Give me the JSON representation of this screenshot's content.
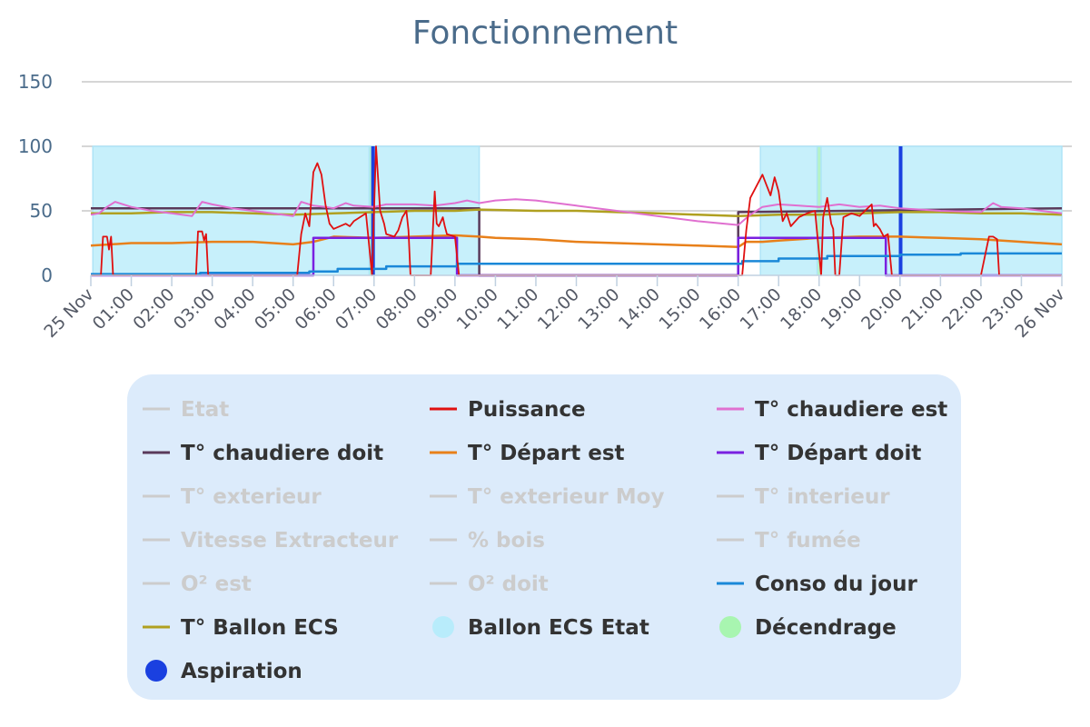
{
  "chart_data": {
    "type": "line",
    "title": "Fonctionnement",
    "xlabel": "",
    "ylabel": "",
    "ylim": [
      0,
      150
    ],
    "yticks": [
      0,
      50,
      100,
      150
    ],
    "xlim": [
      0,
      24
    ],
    "xticks": [
      "25 Nov",
      "01:00",
      "02:00",
      "03:00",
      "04:00",
      "05:00",
      "06:00",
      "07:00",
      "08:00",
      "09:00",
      "10:00",
      "11:00",
      "12:00",
      "13:00",
      "14:00",
      "15:00",
      "16:00",
      "17:00",
      "18:00",
      "19:00",
      "20:00",
      "21:00",
      "22:00",
      "23:00",
      "26 Nov"
    ],
    "grid": true,
    "legend_placement": "bottom",
    "legend": [
      {
        "name": "Etat",
        "kind": "line",
        "color": "#cccccc",
        "visible": false
      },
      {
        "name": "Puissance",
        "kind": "line",
        "color": "#e01010",
        "visible": true
      },
      {
        "name": "T° chaudiere est",
        "kind": "line",
        "color": "#e070d0",
        "visible": true
      },
      {
        "name": "T° chaudiere doit",
        "kind": "line",
        "color": "#5a3a5a",
        "visible": true
      },
      {
        "name": "T° Départ est",
        "kind": "line",
        "color": "#e8801a",
        "visible": true
      },
      {
        "name": "T° Départ doit",
        "kind": "line",
        "color": "#7a20e0",
        "visible": true
      },
      {
        "name": "T° exterieur",
        "kind": "line",
        "color": "#cccccc",
        "visible": false
      },
      {
        "name": "T° exterieur Moy",
        "kind": "line",
        "color": "#cccccc",
        "visible": false
      },
      {
        "name": "T° interieur",
        "kind": "line",
        "color": "#cccccc",
        "visible": false
      },
      {
        "name": "Vitesse Extracteur",
        "kind": "line",
        "color": "#cccccc",
        "visible": false
      },
      {
        "name": "% bois",
        "kind": "line",
        "color": "#cccccc",
        "visible": false
      },
      {
        "name": "T° fumée",
        "kind": "line",
        "color": "#cccccc",
        "visible": false
      },
      {
        "name": "O² est",
        "kind": "line",
        "color": "#cccccc",
        "visible": false
      },
      {
        "name": "O² doit",
        "kind": "line",
        "color": "#cccccc",
        "visible": false
      },
      {
        "name": "Conso du jour",
        "kind": "line",
        "color": "#1a88d8",
        "visible": true
      },
      {
        "name": "T° Ballon ECS",
        "kind": "line",
        "color": "#b0a020",
        "visible": true
      },
      {
        "name": "Ballon ECS Etat",
        "kind": "circle",
        "color": "#b8ecfb",
        "visible": true
      },
      {
        "name": "Décendrage",
        "kind": "circle",
        "color": "#a8f5b0",
        "visible": true
      },
      {
        "name": "Aspiration",
        "kind": "circle",
        "color": "#1a40e0",
        "visible": true
      }
    ],
    "areas": [
      {
        "name": "Ballon ECS Etat",
        "color": "#c4effb",
        "value": 100,
        "ranges": [
          [
            0.05,
            9.6
          ],
          [
            16.55,
            24
          ]
        ]
      },
      {
        "name": "Décendrage",
        "color": "#b4f2c4",
        "value": 100,
        "ranges": [
          [
            6.88,
            6.98
          ],
          [
            17.95,
            18.05
          ]
        ]
      },
      {
        "name": "Aspiration",
        "color": "#1a40e0",
        "value": 100,
        "ranges": [
          [
            6.93,
            7.02
          ],
          [
            19.97,
            20.03
          ]
        ]
      }
    ],
    "series": [
      {
        "name": "T° chaudiere doit",
        "color": "#5a3a5a",
        "width": 2.5,
        "x": [
          0,
          9.6,
          9.6,
          16.0,
          16.0,
          24
        ],
        "y": [
          52,
          52,
          0,
          0,
          49,
          52
        ]
      },
      {
        "name": "T° Ballon ECS",
        "color": "#b0a020",
        "width": 2.5,
        "x": [
          0,
          1,
          2,
          3,
          4,
          5,
          6,
          7,
          8,
          9,
          9.6,
          11,
          12,
          13,
          14,
          15,
          16,
          17,
          18,
          19,
          20,
          21,
          22,
          23,
          24
        ],
        "y": [
          48,
          48,
          49,
          49,
          48,
          47,
          48,
          49,
          50,
          50,
          51,
          50,
          50,
          49,
          48,
          47,
          46,
          47,
          47,
          48,
          49,
          49,
          48,
          48,
          47
        ]
      },
      {
        "name": "T° chaudiere est",
        "color": "#e070d0",
        "width": 2,
        "x": [
          0,
          0.2,
          0.4,
          0.6,
          1,
          1.5,
          2,
          2.5,
          2.75,
          3,
          3.5,
          4,
          4.5,
          5,
          5.2,
          5.5,
          5.8,
          6,
          6.3,
          6.5,
          7,
          7.3,
          8,
          8.5,
          9,
          9.3,
          9.6,
          10,
          10.5,
          11,
          12,
          13,
          14,
          15,
          16,
          16.3,
          16.6,
          17,
          17.5,
          18,
          18.5,
          19,
          19.5,
          20,
          20.5,
          21,
          22,
          22.3,
          22.5,
          23,
          23.5,
          24
        ],
        "y": [
          47,
          48,
          53,
          57,
          53,
          50,
          48,
          46,
          57,
          55,
          52,
          50,
          48,
          46,
          57,
          54,
          53,
          52,
          56,
          54,
          53,
          55,
          55,
          54,
          56,
          58,
          56,
          58,
          59,
          58,
          54,
          50,
          46,
          42,
          39,
          47,
          53,
          55,
          54,
          53,
          55,
          53,
          54,
          52,
          51,
          50,
          49,
          56,
          53,
          52,
          50,
          48
        ]
      },
      {
        "name": "T° Départ est",
        "color": "#e8801a",
        "width": 2.5,
        "x": [
          0,
          0.5,
          1,
          2,
          3,
          4,
          5,
          5.5,
          6,
          7,
          8,
          9,
          9.6,
          10,
          11,
          12,
          13,
          14,
          15,
          16,
          16.2,
          16.6,
          17,
          18,
          19,
          20,
          21,
          22,
          23,
          24
        ],
        "y": [
          23,
          24,
          25,
          25,
          26,
          26,
          24,
          26,
          30,
          29,
          30,
          31,
          30,
          29,
          28,
          26,
          25,
          24,
          23,
          22,
          26,
          26,
          27,
          29,
          30,
          30,
          29,
          28,
          26,
          24
        ]
      },
      {
        "name": "T° Départ doit",
        "color": "#7a20e0",
        "width": 2.5,
        "x": [
          0,
          5.5,
          5.5,
          9.05,
          9.05,
          16.0,
          16.0,
          19.65,
          19.65,
          24
        ],
        "y": [
          0,
          0,
          29,
          29,
          0,
          0,
          29,
          29,
          0,
          0
        ]
      },
      {
        "name": "Conso du jour",
        "color": "#1a88d8",
        "width": 2.5,
        "x": [
          0,
          2.7,
          2.7,
          5.4,
          5.4,
          6.1,
          6.1,
          7.3,
          7.3,
          9.05,
          9.05,
          16.1,
          16.1,
          17.0,
          17.0,
          18.2,
          18.2,
          20.0,
          20.0,
          21.5,
          21.5,
          24
        ],
        "y": [
          1,
          1,
          2,
          2,
          3,
          3,
          5,
          5,
          7,
          7,
          9,
          9,
          11,
          11,
          13,
          13,
          15,
          15,
          16,
          16,
          17,
          17
        ]
      },
      {
        "name": "Puissance",
        "color": "#e01010",
        "width": 1.8,
        "x": [
          0,
          0.25,
          0.3,
          0.4,
          0.45,
          0.5,
          0.55,
          0.6,
          2.0,
          2.6,
          2.65,
          2.75,
          2.8,
          2.85,
          2.9,
          5.1,
          5.2,
          5.3,
          5.4,
          5.5,
          5.6,
          5.7,
          5.8,
          5.9,
          6.0,
          6.3,
          6.4,
          6.5,
          6.8,
          6.95,
          7.05,
          7.15,
          7.25,
          7.3,
          7.5,
          7.6,
          7.7,
          7.8,
          7.85,
          7.9,
          8.0,
          8.4,
          8.5,
          8.55,
          8.6,
          8.7,
          8.75,
          8.8,
          9.0,
          9.1,
          9.15,
          9.2,
          10,
          12,
          15,
          16.1,
          16.2,
          16.3,
          16.5,
          16.6,
          16.7,
          16.8,
          16.9,
          17.0,
          17.1,
          17.2,
          17.3,
          17.5,
          17.7,
          17.9,
          18.05,
          18.1,
          18.2,
          18.3,
          18.35,
          18.4,
          18.5,
          18.6,
          18.8,
          19.0,
          19.2,
          19.3,
          19.35,
          19.4,
          19.5,
          19.6,
          19.7,
          19.8,
          20.0,
          20.5,
          22.0,
          22.2,
          22.3,
          22.4,
          22.45,
          22.5,
          23,
          24
        ],
        "y": [
          0,
          0,
          30,
          30,
          20,
          30,
          0,
          0,
          0,
          0,
          34,
          34,
          27,
          32,
          0,
          0,
          32,
          48,
          38,
          80,
          87,
          78,
          55,
          40,
          36,
          40,
          38,
          42,
          48,
          0,
          100,
          50,
          40,
          32,
          30,
          35,
          45,
          50,
          35,
          0,
          0,
          0,
          65,
          40,
          38,
          45,
          38,
          32,
          30,
          0,
          0,
          0,
          0,
          0,
          0,
          0,
          35,
          60,
          72,
          78,
          70,
          62,
          76,
          65,
          42,
          48,
          38,
          45,
          48,
          50,
          0,
          45,
          60,
          40,
          36,
          0,
          0,
          45,
          48,
          46,
          52,
          55,
          38,
          40,
          36,
          30,
          32,
          0,
          0,
          0,
          0,
          30,
          30,
          28,
          0,
          0,
          0,
          0
        ]
      }
    ]
  }
}
